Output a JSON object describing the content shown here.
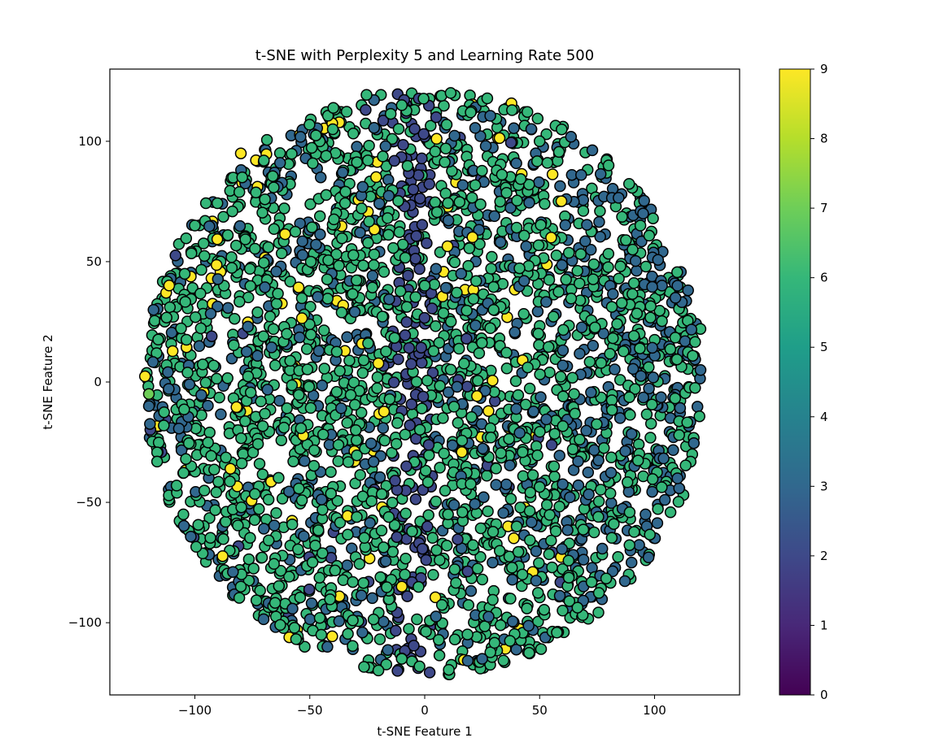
{
  "chart_data": {
    "type": "scatter",
    "title": "t-SNE with Perplexity 5 and Learning Rate 500",
    "xlabel": "t-SNE Feature 1",
    "ylabel": "t-SNE Feature 2",
    "xlim": [
      -137,
      137
    ],
    "ylim": [
      -130,
      130
    ],
    "xticks": [
      -100,
      -50,
      0,
      50,
      100
    ],
    "yticks": [
      -100,
      -50,
      0,
      50,
      100
    ],
    "grid": false,
    "marker": {
      "shape": "circle",
      "edgecolor": "#000000"
    },
    "colorbar": {
      "colormap": "viridis",
      "range": [
        0,
        9
      ],
      "ticks": [
        0,
        1,
        2,
        3,
        4,
        5,
        6,
        7,
        8,
        9
      ]
    },
    "point_cloud": {
      "shape": "disk",
      "center": [
        0,
        0
      ],
      "radius": 122,
      "dominant_value": 6,
      "background_value": 3,
      "vertical_band": {
        "x_range": [
          -14,
          4
        ],
        "value": 2
      },
      "minority_values": [
        2,
        9,
        7
      ],
      "approximate_count": 3200
    },
    "points": [
      {
        "x": -10,
        "y": 115,
        "c": 6
      },
      {
        "x": 5,
        "y": 110,
        "c": 2
      },
      {
        "x": 20,
        "y": 112,
        "c": 6
      },
      {
        "x": 50,
        "y": 100,
        "c": 6
      },
      {
        "x": 80,
        "y": 90,
        "c": 6
      },
      {
        "x": 95,
        "y": 70,
        "c": 3
      },
      {
        "x": 110,
        "y": 40,
        "c": 3
      },
      {
        "x": 120,
        "y": 5,
        "c": 3
      },
      {
        "x": 110,
        "y": -40,
        "c": 3
      },
      {
        "x": 90,
        "y": -75,
        "c": 3
      },
      {
        "x": 60,
        "y": -95,
        "c": 6
      },
      {
        "x": 25,
        "y": -115,
        "c": 3
      },
      {
        "x": -10,
        "y": -115,
        "c": 6
      },
      {
        "x": -45,
        "y": -105,
        "c": 6
      },
      {
        "x": -80,
        "y": -85,
        "c": 6
      },
      {
        "x": -105,
        "y": -55,
        "c": 6
      },
      {
        "x": -120,
        "y": -10,
        "c": 3
      },
      {
        "x": -118,
        "y": 30,
        "c": 3
      },
      {
        "x": -100,
        "y": 65,
        "c": 6
      },
      {
        "x": -70,
        "y": 92,
        "c": 6
      },
      {
        "x": -40,
        "y": 105,
        "c": 6
      },
      {
        "x": -5,
        "y": 80,
        "c": 2
      },
      {
        "x": 0,
        "y": 40,
        "c": 6
      },
      {
        "x": -8,
        "y": -35,
        "c": 2
      },
      {
        "x": 30,
        "y": 30,
        "c": 6
      },
      {
        "x": -30,
        "y": -20,
        "c": 6
      },
      {
        "x": 65,
        "y": -5,
        "c": 6
      },
      {
        "x": 85,
        "y": -15,
        "c": 3
      },
      {
        "x": -60,
        "y": 20,
        "c": 6
      },
      {
        "x": 40,
        "y": -60,
        "c": 6
      },
      {
        "x": -80,
        "y": 95,
        "c": 9
      },
      {
        "x": 55,
        "y": 60,
        "c": 9
      },
      {
        "x": -10,
        "y": -85,
        "c": 9
      },
      {
        "x": -120,
        "y": -5,
        "c": 7
      }
    ]
  }
}
